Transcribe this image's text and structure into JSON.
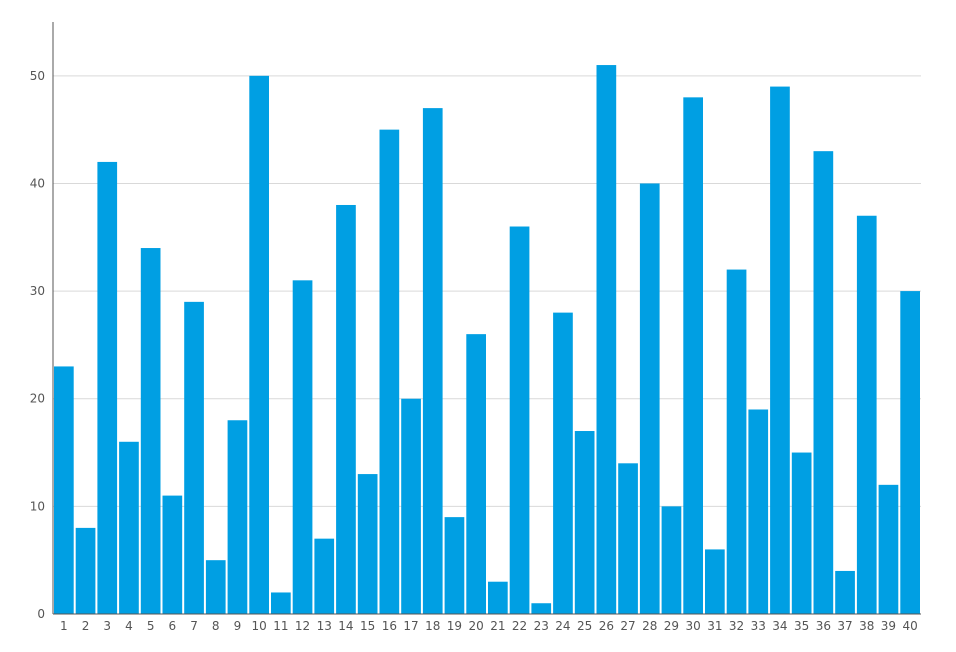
{
  "chart_data": {
    "type": "bar",
    "title": "",
    "xlabel": "",
    "ylabel": "",
    "categories": [
      "1",
      "2",
      "3",
      "4",
      "5",
      "6",
      "7",
      "8",
      "9",
      "10",
      "11",
      "12",
      "13",
      "14",
      "15",
      "16",
      "17",
      "18",
      "19",
      "20",
      "21",
      "22",
      "23",
      "24",
      "25",
      "26",
      "27",
      "28",
      "29",
      "30",
      "31",
      "32",
      "33",
      "34",
      "35",
      "36",
      "37",
      "38",
      "39",
      "40"
    ],
    "series": [
      {
        "values": [
          23,
          8,
          42,
          16,
          34,
          11,
          29,
          5,
          18,
          50,
          2,
          31,
          7,
          38,
          13,
          45,
          20,
          47,
          9,
          26,
          3,
          36,
          1,
          28,
          17,
          51,
          14,
          40,
          10,
          48,
          6,
          32,
          19,
          49,
          15,
          43,
          4,
          37,
          12,
          30
        ],
        "color": "#009fe3"
      }
    ],
    "ylim": [
      0,
      55
    ],
    "yticks": [
      "0",
      "10",
      "20",
      "30",
      "40",
      "50"
    ],
    "grid": "horizontal",
    "legend": "none"
  }
}
